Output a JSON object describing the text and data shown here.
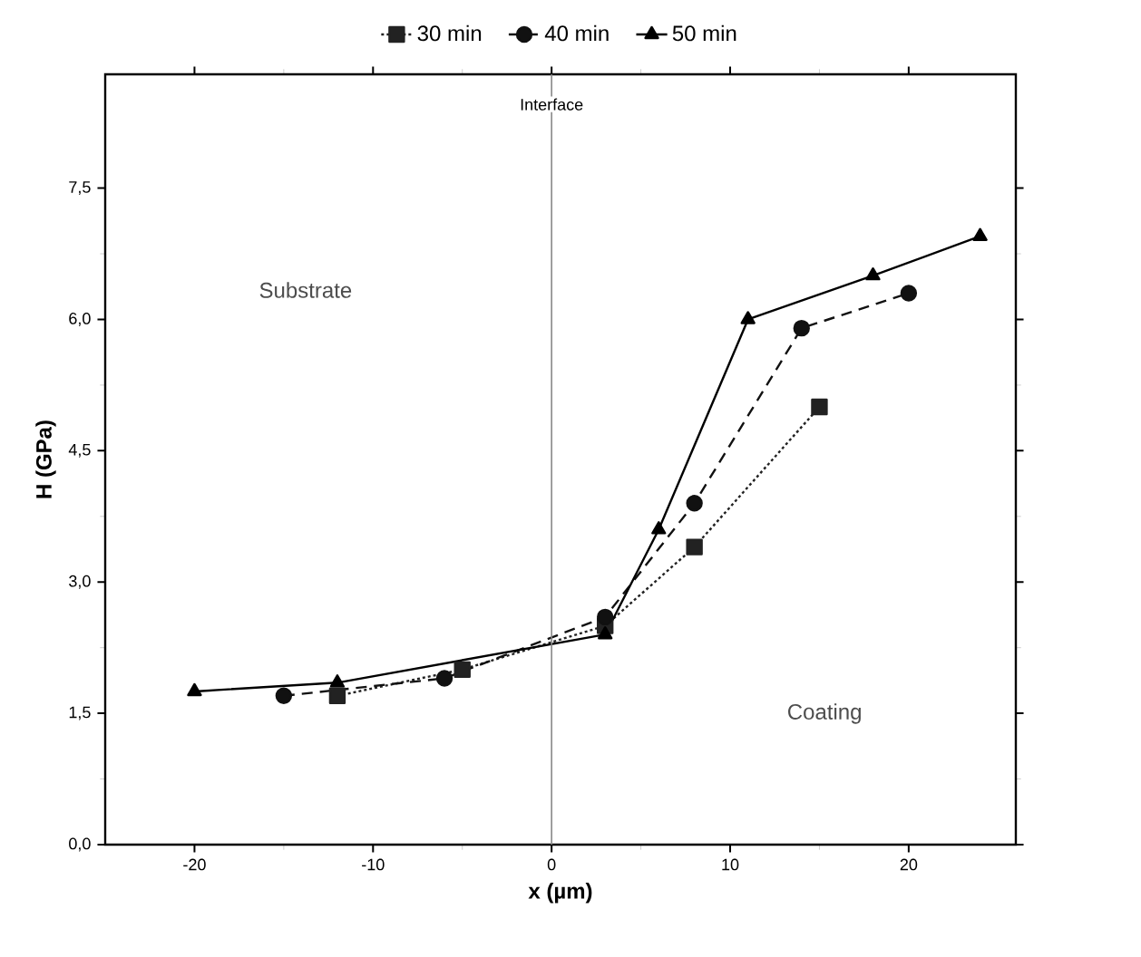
{
  "chart_data": {
    "type": "line",
    "xlabel": "x (µm)",
    "ylabel": "H (GPa)",
    "xlim": [
      -25,
      26
    ],
    "ylim": [
      0,
      8.8
    ],
    "xticks": [
      -20,
      -10,
      0,
      10,
      20
    ],
    "yticks": [
      {
        "value": 0,
        "label": "0,0"
      },
      {
        "value": 1.5,
        "label": "1,5"
      },
      {
        "value": 3,
        "label": "3,0"
      },
      {
        "value": 4.5,
        "label": "4,5"
      },
      {
        "value": 6,
        "label": "6,0"
      },
      {
        "value": 7.5,
        "label": "7,5"
      }
    ],
    "legend": "top",
    "grid": false,
    "ref_lines": [
      {
        "axis": "x",
        "value": 0,
        "label": "Interface",
        "color": "#888888"
      }
    ],
    "annotations": [
      "Substrate",
      "Coating"
    ],
    "series": [
      {
        "name": "30 min",
        "color": "#222222",
        "marker": "square",
        "line_style": "dotted",
        "x": [
          -12,
          -5,
          3,
          8,
          15
        ],
        "values": [
          1.7,
          2.0,
          2.5,
          3.4,
          5.0
        ]
      },
      {
        "name": "40 min",
        "color": "#111111",
        "marker": "circle",
        "line_style": "dashed",
        "x": [
          -15,
          -6,
          3,
          8,
          14,
          20
        ],
        "values": [
          1.7,
          1.9,
          2.6,
          3.9,
          5.9,
          6.3
        ]
      },
      {
        "name": "50 min",
        "color": "#000000",
        "marker": "triangle",
        "line_style": "solid",
        "x": [
          -20,
          -12,
          3,
          6,
          11,
          18,
          24
        ],
        "values": [
          1.75,
          1.85,
          2.4,
          3.6,
          6.0,
          6.5,
          6.95
        ]
      }
    ]
  }
}
